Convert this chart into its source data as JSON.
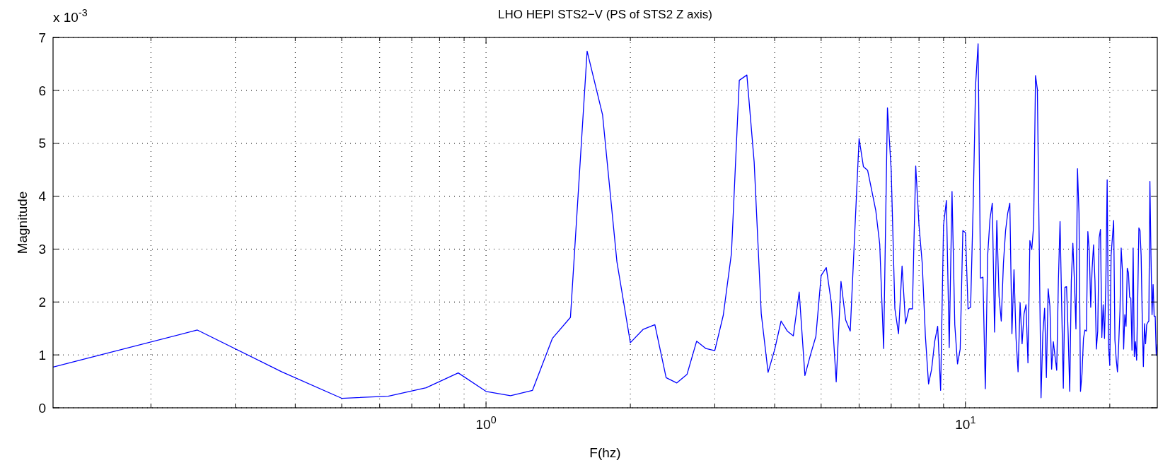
{
  "chart_data": {
    "type": "line",
    "title": "LHO HEPI STS2−V (PS of STS2 Z axis)",
    "xlabel": "F(hz)",
    "ylabel": "Magnitude",
    "annotations": [
      "x 10$^{-3}$"
    ],
    "log": "x",
    "grid": true,
    "xlim": [
      0.125,
      25.125
    ],
    "xticks": [
      {
        "value": 0.2,
        "label": null
      },
      {
        "value": 0.3,
        "label": null
      },
      {
        "value": 0.4,
        "label": null
      },
      {
        "value": 0.5,
        "label": null
      },
      {
        "value": 0.6,
        "label": null
      },
      {
        "value": 0.7,
        "label": null
      },
      {
        "value": 0.8,
        "label": null
      },
      {
        "value": 0.9,
        "label": null
      },
      {
        "value": 1,
        "label": "10$^{0}$"
      },
      {
        "value": 2,
        "label": null
      },
      {
        "value": 3,
        "label": null
      },
      {
        "value": 4,
        "label": null
      },
      {
        "value": 5,
        "label": null
      },
      {
        "value": 6,
        "label": null
      },
      {
        "value": 7,
        "label": null
      },
      {
        "value": 8,
        "label": null
      },
      {
        "value": 9,
        "label": null
      },
      {
        "value": 10,
        "label": "10$^{1}$"
      },
      {
        "value": 20,
        "label": null
      }
    ],
    "ylim": [
      0,
      7
    ],
    "yticks": [
      0,
      1,
      2,
      3,
      4,
      5,
      6,
      7
    ],
    "series": [
      {
        "color": "#0000ff",
        "x": [
          0.125,
          0.25,
          0.375,
          0.5,
          0.625,
          0.75,
          0.875,
          1,
          1.125,
          1.25,
          1.375,
          1.5,
          1.625,
          1.75,
          1.875,
          2,
          2.125,
          2.25,
          2.375,
          2.5,
          2.625,
          2.75,
          2.875,
          3,
          3.125,
          3.25,
          3.375,
          3.5,
          3.625,
          3.75,
          3.875,
          4,
          4.125,
          4.25,
          4.375,
          4.5,
          4.625,
          4.75,
          4.875,
          5,
          5.125,
          5.25,
          5.375,
          5.5,
          5.625,
          5.75,
          5.875,
          6,
          6.125,
          6.25,
          6.375,
          6.5,
          6.625,
          6.75,
          6.875,
          7,
          7.125,
          7.25,
          7.375,
          7.5,
          7.625,
          7.75,
          7.875,
          8,
          8.125,
          8.25,
          8.375,
          8.5,
          8.625,
          8.75,
          8.875,
          9,
          9.125,
          9.25,
          9.375,
          9.5,
          9.625,
          9.75,
          9.875,
          10,
          10.125,
          10.25,
          10.375,
          10.5,
          10.625,
          10.75,
          10.875,
          11,
          11.125,
          11.25,
          11.375,
          11.5,
          11.625,
          11.75,
          11.875,
          12,
          12.125,
          12.25,
          12.375,
          12.5,
          12.625,
          12.75,
          12.875,
          13,
          13.125,
          13.25,
          13.375,
          13.5,
          13.625,
          13.75,
          13.875,
          14,
          14.125,
          14.25,
          14.375,
          14.5,
          14.625,
          14.75,
          14.875,
          15,
          15.125,
          15.25,
          15.375,
          15.5,
          15.625,
          15.75,
          15.875,
          16,
          16.125,
          16.25,
          16.375,
          16.5,
          16.625,
          16.75,
          16.875,
          17,
          17.125,
          17.25,
          17.375,
          17.5,
          17.625,
          17.75,
          17.875,
          18,
          18.125,
          18.25,
          18.375,
          18.5,
          18.625,
          18.75,
          18.875,
          19,
          19.125,
          19.25,
          19.375,
          19.5,
          19.625,
          19.75,
          19.875,
          20,
          20.125,
          20.25,
          20.375,
          20.5,
          20.625,
          20.75,
          20.875,
          21,
          21.125,
          21.25,
          21.375,
          21.5,
          21.625,
          21.75,
          21.875,
          22,
          22.125,
          22.25,
          22.375,
          22.5,
          22.625,
          22.75,
          22.875,
          23,
          23.125,
          23.25,
          23.375,
          23.5,
          23.625,
          23.75,
          23.875,
          24,
          24.125,
          24.25,
          24.375,
          24.5,
          24.625,
          24.75,
          24.875,
          25,
          25.125
        ],
        "values": [
          0.77,
          1.47,
          0.68,
          0.18,
          0.22,
          0.38,
          0.66,
          0.31,
          0.23,
          0.33,
          1.31,
          1.71,
          6.74,
          5.54,
          2.76,
          1.23,
          1.48,
          1.57,
          0.57,
          0.47,
          0.63,
          1.26,
          1.12,
          1.08,
          1.75,
          2.92,
          6.19,
          6.29,
          4.64,
          1.78,
          0.67,
          1.1,
          1.64,
          1.45,
          1.36,
          2.19,
          0.61,
          1.0,
          1.35,
          2.5,
          2.65,
          1.99,
          0.49,
          2.39,
          1.66,
          1.45,
          3.3,
          5.09,
          4.56,
          4.49,
          4.11,
          3.73,
          3.09,
          1.12,
          5.67,
          4.49,
          1.87,
          1.4,
          2.68,
          1.59,
          1.87,
          1.87,
          4.57,
          3.45,
          2.73,
          1.35,
          0.45,
          0.73,
          1.25,
          1.54,
          0.33,
          3.45,
          3.92,
          1.14,
          4.09,
          1.57,
          0.83,
          1.11,
          3.35,
          3.31,
          1.87,
          1.9,
          3.8,
          6.11,
          6.88,
          2.45,
          2.47,
          0.36,
          2.88,
          3.57,
          3.87,
          1.43,
          3.54,
          2.11,
          1.64,
          2.73,
          3.35,
          3.68,
          3.87,
          1.4,
          2.61,
          1.31,
          0.68,
          1.99,
          1.21,
          1.78,
          1.95,
          0.85,
          3.16,
          2.99,
          3.45,
          6.28,
          6.02,
          3.11,
          0.19,
          1.4,
          1.88,
          0.57,
          2.25,
          1.92,
          0.73,
          1.25,
          0.97,
          0.71,
          2.4,
          3.52,
          1.92,
          0.37,
          2.28,
          2.29,
          1.4,
          0.31,
          2.4,
          3.11,
          2.4,
          1.49,
          4.52,
          3.68,
          0.31,
          0.64,
          1.31,
          1.47,
          1.45,
          3.33,
          2.97,
          1.9,
          2.64,
          3.08,
          2.4,
          1.11,
          1.45,
          3.21,
          3.37,
          1.33,
          1.95,
          1.31,
          2.37,
          4.31,
          1.19,
          0.8,
          2.88,
          3.21,
          3.54,
          1.28,
          0.92,
          0.68,
          1.21,
          1.83,
          3.02,
          2.59,
          1.11,
          1.76,
          1.54,
          2.64,
          2.55,
          2.09,
          2.07,
          1.09,
          3.02,
          0.97,
          1.25,
          0.9,
          2.11,
          3.4,
          3.35,
          2.88,
          1.68,
          0.78,
          1.59,
          1.21,
          1.57,
          1.61,
          1.64,
          4.28,
          2.88,
          1.76,
          2.33,
          1.73,
          1.73,
          0.99,
          1.2
        ]
      }
    ]
  }
}
